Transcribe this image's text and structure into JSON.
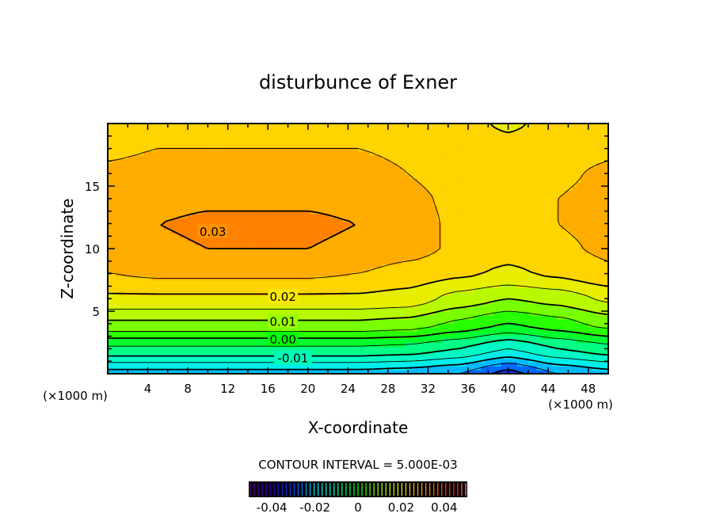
{
  "chart_data": {
    "type": "heatmap",
    "subtype": "filled-contour",
    "title": "disturbunce of Exner",
    "xlabel": "X-coordinate",
    "ylabel": "Z-coordinate",
    "x_unit": "(×1000 m)",
    "y_unit": "(×1000 m)",
    "xlim": [
      0,
      50
    ],
    "ylim": [
      0,
      20
    ],
    "xticks": [
      4,
      8,
      12,
      16,
      20,
      24,
      28,
      32,
      36,
      40,
      44,
      48
    ],
    "yticks": [
      5,
      10,
      15
    ],
    "contour_interval_label": "CONTOUR INTERVAL = 5.000E-03",
    "contour_interval": 0.005,
    "contour_labels": [
      {
        "text": "0.03",
        "x": 10.5,
        "z": 11.4
      },
      {
        "text": "0.02",
        "x": 17.5,
        "z": 6.2
      },
      {
        "text": "0.01",
        "x": 17.5,
        "z": 4.2
      },
      {
        "text": "0.00",
        "x": 17.5,
        "z": 2.8
      },
      {
        "text": "-0.01",
        "x": 18.5,
        "z": 1.3
      }
    ],
    "grid_x": [
      0,
      5,
      10,
      15,
      20,
      25,
      30,
      35,
      40,
      45,
      50
    ],
    "grid_z": [
      0,
      2,
      4,
      6,
      8,
      10,
      12,
      14,
      16,
      18,
      20
    ],
    "values": [
      [
        -0.022,
        -0.022,
        -0.022,
        -0.022,
        -0.022,
        -0.022,
        -0.023,
        -0.025,
        -0.032,
        -0.025,
        -0.022
      ],
      [
        -0.006,
        -0.006,
        -0.006,
        -0.006,
        -0.006,
        -0.006,
        -0.007,
        -0.01,
        -0.015,
        -0.01,
        -0.007
      ],
      [
        0.009,
        0.009,
        0.009,
        0.009,
        0.009,
        0.009,
        0.008,
        0.004,
        0.0,
        0.003,
        0.007
      ],
      [
        0.019,
        0.019,
        0.019,
        0.019,
        0.019,
        0.019,
        0.018,
        0.013,
        0.01,
        0.012,
        0.016
      ],
      [
        0.025,
        0.026,
        0.026,
        0.026,
        0.026,
        0.025,
        0.023,
        0.021,
        0.019,
        0.021,
        0.024
      ],
      [
        0.027,
        0.029,
        0.03,
        0.03,
        0.03,
        0.029,
        0.027,
        0.024,
        0.022,
        0.024,
        0.026
      ],
      [
        0.028,
        0.03,
        0.031,
        0.031,
        0.031,
        0.03,
        0.027,
        0.024,
        0.023,
        0.025,
        0.027
      ],
      [
        0.027,
        0.028,
        0.029,
        0.029,
        0.029,
        0.028,
        0.026,
        0.024,
        0.023,
        0.025,
        0.027
      ],
      [
        0.026,
        0.027,
        0.027,
        0.027,
        0.027,
        0.027,
        0.025,
        0.023,
        0.022,
        0.024,
        0.026
      ],
      [
        0.024,
        0.025,
        0.025,
        0.025,
        0.025,
        0.025,
        0.024,
        0.022,
        0.021,
        0.022,
        0.024
      ],
      [
        0.022,
        0.023,
        0.023,
        0.023,
        0.023,
        0.023,
        0.022,
        0.021,
        0.0195,
        0.021,
        0.022
      ]
    ],
    "colorbar": {
      "range": [
        -0.05,
        0.05
      ],
      "tick_values": [
        -0.04,
        -0.02,
        0,
        0.02,
        0.04
      ],
      "tick_labels": [
        "-0.04",
        "-0.02",
        "0",
        "0.02",
        "0.04"
      ]
    },
    "colors": {
      "stops": [
        [
          -0.05,
          "#600090"
        ],
        [
          -0.04,
          "#3000c0"
        ],
        [
          -0.03,
          "#0040ff"
        ],
        [
          -0.025,
          "#0090ff"
        ],
        [
          -0.02,
          "#00e8ff"
        ],
        [
          -0.01,
          "#00ffb0"
        ],
        [
          0.0,
          "#00ff00"
        ],
        [
          0.01,
          "#a0ff00"
        ],
        [
          0.02,
          "#ffe800"
        ],
        [
          0.025,
          "#ffc000"
        ],
        [
          0.03,
          "#ff9800"
        ],
        [
          0.035,
          "#ff6a00"
        ],
        [
          0.045,
          "#ff2000"
        ],
        [
          0.05,
          "#ff8080"
        ]
      ]
    }
  }
}
